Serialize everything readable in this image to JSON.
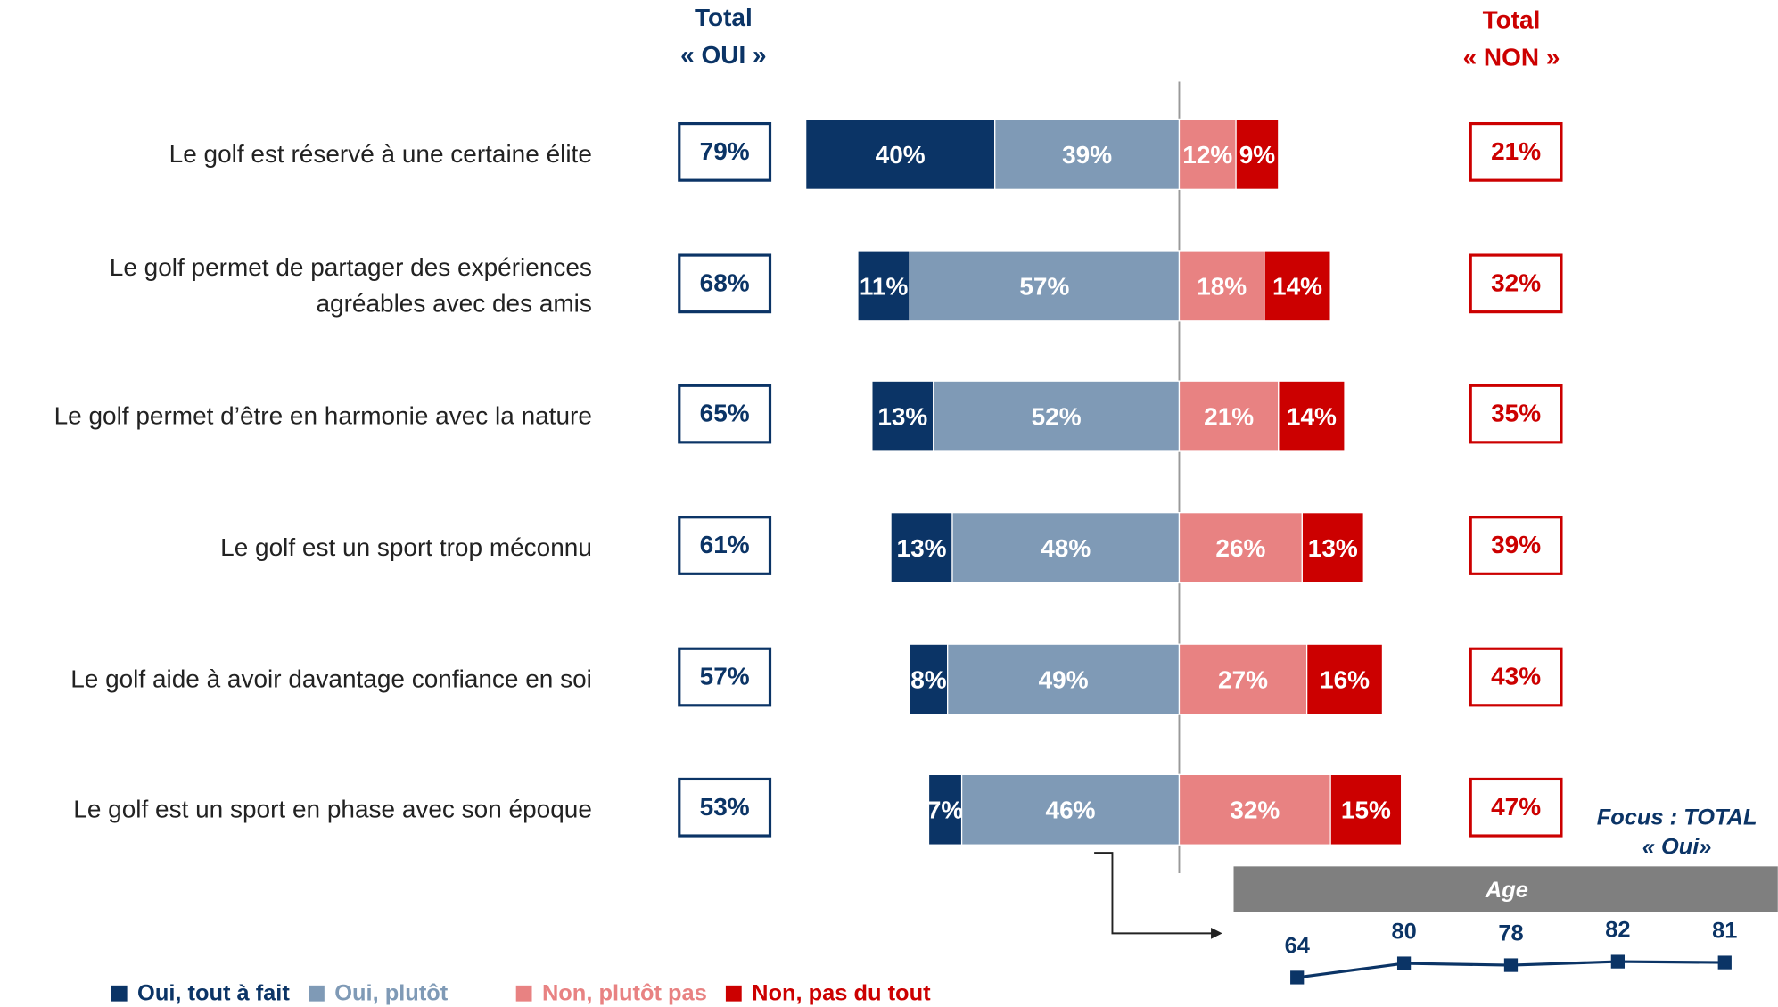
{
  "chart_data": [
    {
      "type": "diverging-bar",
      "categories": [
        "Le golf est réservé à une certaine élite",
        "Le golf permet de partager des expériences\nagréables avec des amis",
        "Le golf permet d’être en harmonie avec la nature",
        "Le golf est un sport trop méconnu",
        "Le golf aide à avoir davantage confiance en soi",
        "Le golf est un sport en phase avec son époque"
      ],
      "series": [
        {
          "name": "Oui, tout à fait",
          "color": "#0b3466",
          "values": [
            40,
            11,
            13,
            13,
            8,
            7
          ],
          "value_labels": [
            "40%",
            "11%",
            "13%",
            "13%",
            "8%",
            "7%"
          ]
        },
        {
          "name": "Oui, plutôt",
          "color": "#7f9ab6",
          "values": [
            39,
            57,
            52,
            48,
            49,
            46
          ],
          "value_labels": [
            "39%",
            "57%",
            "52%",
            "48%",
            "49%",
            "46%"
          ]
        },
        {
          "name": "Non, plutôt pas",
          "color": "#e88282",
          "values": [
            12,
            18,
            21,
            26,
            27,
            32
          ],
          "value_labels": [
            "12%",
            "18%",
            "21%",
            "26%",
            "27%",
            "32%"
          ]
        },
        {
          "name": "Non, pas du tout",
          "color": "#cc0000",
          "values": [
            9,
            14,
            14,
            13,
            16,
            15
          ],
          "value_labels": [
            "9%",
            "14%",
            "14%",
            "13%",
            "16%",
            "15%"
          ]
        }
      ],
      "total_oui": {
        "title": [
          "Total",
          "« OUI »"
        ],
        "color": "#0b3466",
        "values": [
          79,
          68,
          65,
          61,
          57,
          53
        ],
        "value_labels": [
          "79%",
          "68%",
          "65%",
          "61%",
          "57%",
          "53%"
        ]
      },
      "total_non": {
        "title": [
          "Total",
          "« NON »"
        ],
        "color": "#cc0000",
        "values": [
          21,
          32,
          35,
          39,
          43,
          47
        ],
        "value_labels": [
          "21%",
          "32%",
          "35%",
          "39%",
          "43%",
          "47%"
        ]
      }
    },
    {
      "type": "line",
      "heading": [
        "Focus : TOTAL",
        "« Oui»"
      ],
      "title": "Age",
      "color": "#0b3466",
      "values": [
        64,
        80,
        78,
        82,
        81
      ]
    }
  ]
}
